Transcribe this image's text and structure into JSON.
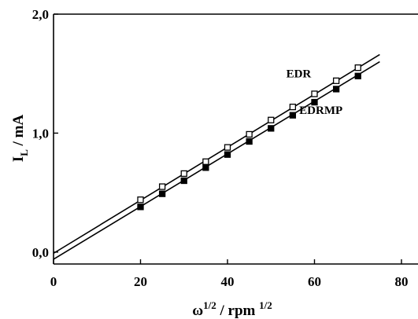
{
  "chart_data": {
    "type": "scatter",
    "title": "",
    "xlabel": "ω",
    "xlabel_sup": "1/2",
    "xlabel_unit": " / rpm ",
    "xlabel_unit_sup": "1/2",
    "ylabel": "I",
    "ylabel_sub": "L",
    "ylabel_unit": " / mA",
    "xlim": [
      0,
      80
    ],
    "ylim": [
      -0.1,
      2.0
    ],
    "xticks": [
      0,
      20,
      40,
      60,
      80
    ],
    "xtick_labels": [
      "0",
      "20",
      "40",
      "60",
      "80"
    ],
    "yticks": [
      0.0,
      1.0,
      2.0
    ],
    "ytick_labels": [
      "0,0",
      "1,0",
      "2,0"
    ],
    "grid": false,
    "series": [
      {
        "name": "EDR",
        "marker": "open-square",
        "color": "#000000",
        "x": [
          20,
          25,
          30,
          35,
          40,
          45,
          50,
          55,
          60,
          65,
          70
        ],
        "y": [
          0.44,
          0.55,
          0.66,
          0.76,
          0.88,
          0.99,
          1.11,
          1.22,
          1.33,
          1.44,
          1.55
        ],
        "fit": {
          "x": [
            0,
            75
          ],
          "y": [
            -0.01,
            1.66
          ]
        }
      },
      {
        "name": "EDRMP",
        "marker": "filled-square",
        "color": "#000000",
        "x": [
          20,
          25,
          30,
          35,
          40,
          45,
          50,
          55,
          60,
          65,
          70
        ],
        "y": [
          0.38,
          0.49,
          0.6,
          0.71,
          0.82,
          0.93,
          1.04,
          1.15,
          1.26,
          1.37,
          1.48
        ],
        "fit": {
          "x": [
            0,
            75
          ],
          "y": [
            -0.06,
            1.6
          ]
        }
      }
    ],
    "series_labels": [
      {
        "text": "EDR",
        "x": 53.5,
        "y": 1.47
      },
      {
        "text": "EDRMP",
        "x": 56.5,
        "y": 1.16
      }
    ]
  }
}
